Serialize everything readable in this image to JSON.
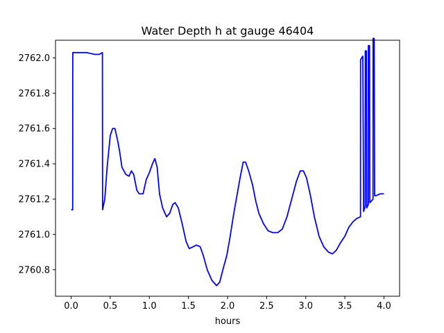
{
  "chart_data": {
    "type": "line",
    "title": "Water Depth h at gauge 46404",
    "xlabel": "hours",
    "ylabel": "",
    "xlim": [
      -0.2,
      4.2
    ],
    "ylim": [
      2760.65,
      2762.1
    ],
    "xticks": [
      0.0,
      0.5,
      1.0,
      1.5,
      2.0,
      2.5,
      3.0,
      3.5,
      4.0
    ],
    "xtick_labels": [
      "0.0",
      "0.5",
      "1.0",
      "1.5",
      "2.0",
      "2.5",
      "3.0",
      "3.5",
      "4.0"
    ],
    "yticks": [
      2760.8,
      2761.0,
      2761.2,
      2761.4,
      2761.6,
      2761.8,
      2762.0
    ],
    "ytick_labels": [
      "2760.8",
      "2761.0",
      "2761.2",
      "2761.4",
      "2761.6",
      "2761.8",
      "2762.0"
    ],
    "grid": false,
    "series": [
      {
        "color": "#0000ff",
        "points": [
          [
            0.0,
            2761.14
          ],
          [
            0.02,
            2761.14
          ],
          [
            0.021,
            2762.03
          ],
          [
            0.1,
            2762.03
          ],
          [
            0.2,
            2762.03
          ],
          [
            0.3,
            2762.02
          ],
          [
            0.36,
            2762.02
          ],
          [
            0.4,
            2762.03
          ],
          [
            0.402,
            2761.14
          ],
          [
            0.43,
            2761.2
          ],
          [
            0.46,
            2761.38
          ],
          [
            0.5,
            2761.56
          ],
          [
            0.53,
            2761.6
          ],
          [
            0.56,
            2761.6
          ],
          [
            0.6,
            2761.52
          ],
          [
            0.62,
            2761.47
          ],
          [
            0.65,
            2761.38
          ],
          [
            0.7,
            2761.34
          ],
          [
            0.74,
            2761.33
          ],
          [
            0.77,
            2761.36
          ],
          [
            0.8,
            2761.34
          ],
          [
            0.84,
            2761.25
          ],
          [
            0.87,
            2761.23
          ],
          [
            0.92,
            2761.23
          ],
          [
            0.96,
            2761.31
          ],
          [
            1.0,
            2761.35
          ],
          [
            1.04,
            2761.4
          ],
          [
            1.07,
            2761.43
          ],
          [
            1.1,
            2761.38
          ],
          [
            1.13,
            2761.23
          ],
          [
            1.17,
            2761.15
          ],
          [
            1.22,
            2761.1
          ],
          [
            1.26,
            2761.12
          ],
          [
            1.3,
            2761.17
          ],
          [
            1.33,
            2761.18
          ],
          [
            1.37,
            2761.15
          ],
          [
            1.42,
            2761.06
          ],
          [
            1.47,
            2760.96
          ],
          [
            1.51,
            2760.92
          ],
          [
            1.56,
            2760.93
          ],
          [
            1.6,
            2760.94
          ],
          [
            1.65,
            2760.93
          ],
          [
            1.69,
            2760.88
          ],
          [
            1.74,
            2760.8
          ],
          [
            1.8,
            2760.74
          ],
          [
            1.86,
            2760.71
          ],
          [
            1.9,
            2760.73
          ],
          [
            1.94,
            2760.8
          ],
          [
            1.99,
            2760.88
          ],
          [
            2.03,
            2760.98
          ],
          [
            2.08,
            2761.12
          ],
          [
            2.12,
            2761.22
          ],
          [
            2.16,
            2761.32
          ],
          [
            2.2,
            2761.41
          ],
          [
            2.23,
            2761.41
          ],
          [
            2.27,
            2761.36
          ],
          [
            2.32,
            2761.28
          ],
          [
            2.36,
            2761.19
          ],
          [
            2.4,
            2761.12
          ],
          [
            2.46,
            2761.06
          ],
          [
            2.52,
            2761.02
          ],
          [
            2.58,
            2761.01
          ],
          [
            2.64,
            2761.01
          ],
          [
            2.7,
            2761.03
          ],
          [
            2.76,
            2761.1
          ],
          [
            2.82,
            2761.2
          ],
          [
            2.88,
            2761.3
          ],
          [
            2.93,
            2761.36
          ],
          [
            2.97,
            2761.36
          ],
          [
            3.01,
            2761.32
          ],
          [
            3.06,
            2761.22
          ],
          [
            3.11,
            2761.1
          ],
          [
            3.17,
            2760.99
          ],
          [
            3.23,
            2760.93
          ],
          [
            3.29,
            2760.9
          ],
          [
            3.34,
            2760.89
          ],
          [
            3.39,
            2760.91
          ],
          [
            3.44,
            2760.95
          ],
          [
            3.5,
            2760.99
          ],
          [
            3.55,
            2761.04
          ],
          [
            3.6,
            2761.07
          ],
          [
            3.65,
            2761.09
          ],
          [
            3.7,
            2761.1
          ],
          [
            3.701,
            2761.99
          ],
          [
            3.73,
            2762.01
          ],
          [
            3.74,
            2761.13
          ],
          [
            3.76,
            2761.16
          ],
          [
            3.761,
            2762.04
          ],
          [
            3.775,
            2762.04
          ],
          [
            3.78,
            2761.15
          ],
          [
            3.8,
            2761.17
          ],
          [
            3.801,
            2762.07
          ],
          [
            3.815,
            2762.07
          ],
          [
            3.82,
            2761.18
          ],
          [
            3.86,
            2761.2
          ],
          [
            3.861,
            2762.11
          ],
          [
            3.875,
            2762.11
          ],
          [
            3.88,
            2761.22
          ],
          [
            3.9,
            2761.22
          ],
          [
            3.95,
            2761.23
          ],
          [
            4.0,
            2761.23
          ]
        ]
      }
    ]
  }
}
